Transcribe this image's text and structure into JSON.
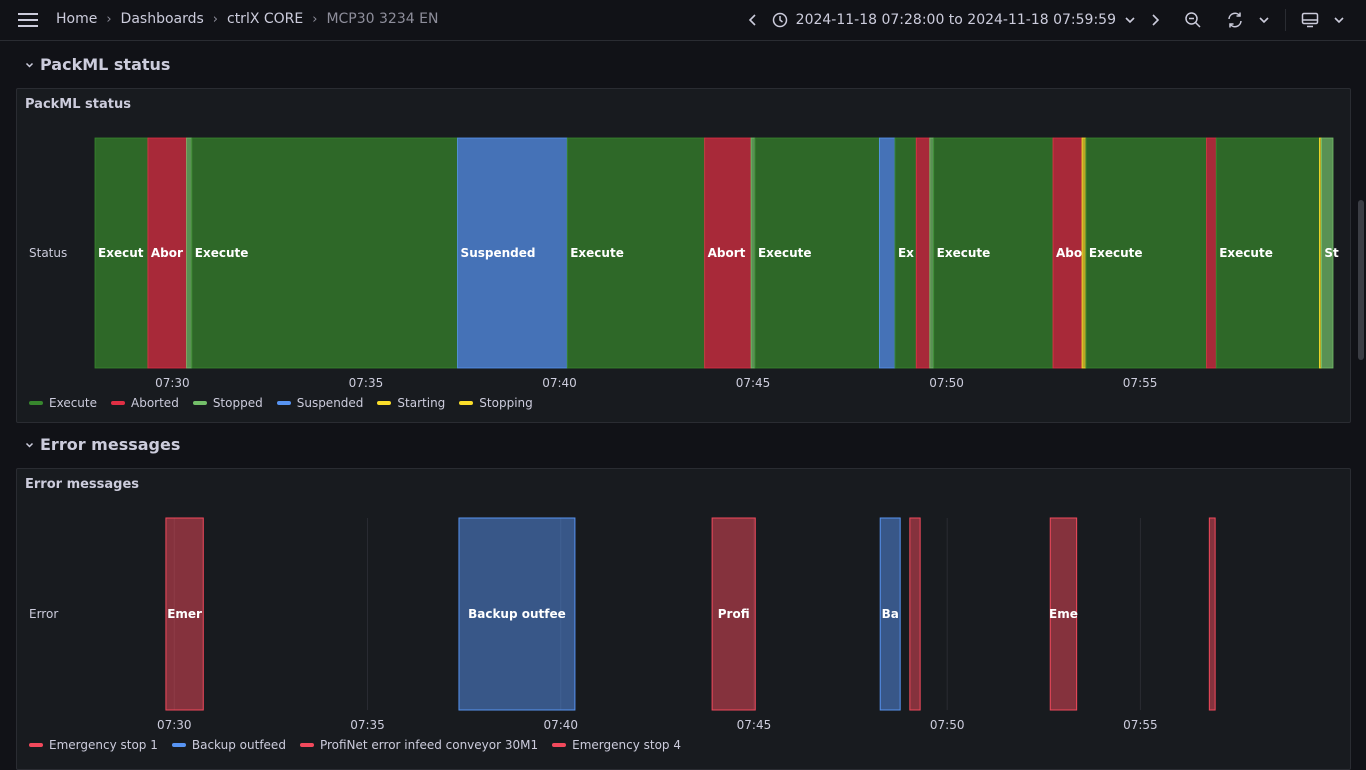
{
  "topbar": {
    "breadcrumbs": [
      "Home",
      "Dashboards",
      "ctrlX CORE",
      "MCP30 3234 EN"
    ],
    "time_range": "2024-11-18 07:28:00 to 2024-11-18 07:59:59",
    "icons": [
      "menu-icon",
      "chevron-left-icon",
      "clock-icon",
      "chevron-down-icon",
      "chevron-right-icon",
      "zoom-out-icon",
      "refresh-icon",
      "chevron-down-icon",
      "tv-icon",
      "chevron-down-icon"
    ]
  },
  "rows": {
    "packml": "PackML status",
    "errors": "Error messages"
  },
  "colors": {
    "Execute": "#37872d",
    "Aborted": "#e02f44",
    "Stopped": "#73bf69",
    "Suspended": "#5794f2",
    "Starting": "#fade2a",
    "Stopping": "#fade2a",
    "Emergency stop 1": "#f2495c",
    "Backup outfeed": "#5794f2",
    "ProfiNet error infeed conveyor 30M1": "#f2495c",
    "Emergency stop 4": "#f2495c"
  },
  "packml_panel": {
    "title": "PackML status",
    "chart_data": {
      "type": "state-timeline",
      "x_range": [
        "07:28:00",
        "07:59:59"
      ],
      "x_ticks": [
        "07:30",
        "07:35",
        "07:40",
        "07:45",
        "07:50",
        "07:55"
      ],
      "rows": [
        "Status"
      ],
      "segments": [
        {
          "start": "07:28:00",
          "end": "07:29:22",
          "state": "Execute",
          "label": "Execut"
        },
        {
          "start": "07:29:22",
          "end": "07:30:22",
          "state": "Aborted",
          "label": "Abor"
        },
        {
          "start": "07:30:22",
          "end": "07:30:30",
          "state": "Stopped",
          "label": ""
        },
        {
          "start": "07:30:30",
          "end": "07:37:22",
          "state": "Execute",
          "label": "Execute"
        },
        {
          "start": "07:37:22",
          "end": "07:40:12",
          "state": "Suspended",
          "label": "Suspended"
        },
        {
          "start": "07:40:12",
          "end": "07:43:45",
          "state": "Execute",
          "label": "Execute"
        },
        {
          "start": "07:43:45",
          "end": "07:44:57",
          "state": "Aborted",
          "label": "Abort"
        },
        {
          "start": "07:44:57",
          "end": "07:45:03",
          "state": "Stopped",
          "label": ""
        },
        {
          "start": "07:45:03",
          "end": "07:48:16",
          "state": "Execute",
          "label": "Execute"
        },
        {
          "start": "07:48:16",
          "end": "07:48:40",
          "state": "Suspended",
          "label": ""
        },
        {
          "start": "07:48:40",
          "end": "07:49:13",
          "state": "Execute",
          "label": "Ex"
        },
        {
          "start": "07:49:13",
          "end": "07:49:34",
          "state": "Aborted",
          "label": ""
        },
        {
          "start": "07:49:34",
          "end": "07:49:40",
          "state": "Stopped",
          "label": ""
        },
        {
          "start": "07:49:40",
          "end": "07:52:45",
          "state": "Execute",
          "label": "Execute"
        },
        {
          "start": "07:52:45",
          "end": "07:53:30",
          "state": "Aborted",
          "label": "Abo"
        },
        {
          "start": "07:53:30",
          "end": "07:53:36",
          "state": "Starting",
          "label": ""
        },
        {
          "start": "07:53:36",
          "end": "07:56:43",
          "state": "Execute",
          "label": ""
        },
        {
          "start": "07:56:43",
          "end": "07:56:58",
          "state": "Aborted",
          "label": ""
        },
        {
          "start": "07:56:58",
          "end": "07:59:38",
          "state": "Execute",
          "label": "Execute"
        },
        {
          "start": "07:59:38",
          "end": "07:59:41",
          "state": "Starting",
          "label": ""
        },
        {
          "start": "07:59:41",
          "end": "07:59:59",
          "state": "Stopped",
          "label": "St"
        }
      ],
      "extra_labels": [
        {
          "at": "07:53:36",
          "text": "Execute"
        }
      ],
      "legend": [
        "Execute",
        "Aborted",
        "Stopped",
        "Suspended",
        "Starting",
        "Stopping"
      ]
    }
  },
  "errors_panel": {
    "title": "Error messages",
    "chart_data": {
      "type": "state-timeline",
      "x_range": [
        "07:28:00",
        "07:59:59"
      ],
      "x_ticks": [
        "07:30",
        "07:35",
        "07:40",
        "07:45",
        "07:50",
        "07:55"
      ],
      "rows": [
        "Error"
      ],
      "segments": [
        {
          "start": "07:29:47",
          "end": "07:30:45",
          "state": "Emergency stop 1",
          "label": "Emer"
        },
        {
          "start": "07:37:22",
          "end": "07:40:22",
          "state": "Backup outfeed",
          "label": "Backup outfee"
        },
        {
          "start": "07:43:55",
          "end": "07:45:02",
          "state": "ProfiNet error infeed conveyor 30M1",
          "label": "Profi"
        },
        {
          "start": "07:48:16",
          "end": "07:48:47",
          "state": "Backup outfeed",
          "label": "Ba"
        },
        {
          "start": "07:49:02",
          "end": "07:49:18",
          "state": "Emergency stop 4",
          "label": ""
        },
        {
          "start": "07:52:40",
          "end": "07:53:21",
          "state": "Emergency stop 1",
          "label": "Eme"
        },
        {
          "start": "07:56:47",
          "end": "07:56:56",
          "state": "Emergency stop 4",
          "label": ""
        }
      ],
      "legend": [
        "Emergency stop 1",
        "Backup outfeed",
        "ProfiNet error infeed conveyor 30M1",
        "Emergency stop 4"
      ]
    }
  }
}
